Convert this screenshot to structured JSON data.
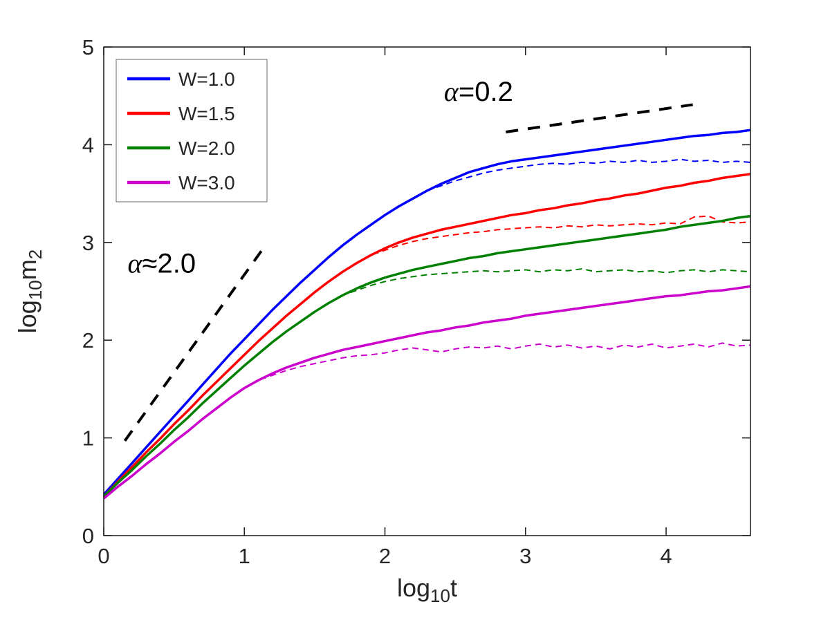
{
  "figure": {
    "background": "#ffffff",
    "axis_color": "#262626",
    "text_color": "#262626",
    "legend_border_color": "#808080"
  },
  "chart_data": {
    "type": "line",
    "title": "",
    "xlabel": "log_{10}t",
    "ylabel": "log_{10}m_{2}",
    "xlim": [
      0,
      4.6
    ],
    "ylim": [
      0,
      5
    ],
    "xticks": [
      0,
      1,
      2,
      3,
      4
    ],
    "yticks": [
      0,
      1,
      2,
      3,
      4,
      5
    ],
    "grid": false,
    "legend_position": "top-left",
    "x": [
      0.0,
      0.1,
      0.2,
      0.3,
      0.4,
      0.5,
      0.6,
      0.7,
      0.8,
      0.9,
      1.0,
      1.1,
      1.2,
      1.3,
      1.4,
      1.5,
      1.6,
      1.7,
      1.8,
      1.9,
      2.0,
      2.1,
      2.2,
      2.3,
      2.4,
      2.5,
      2.6,
      2.7,
      2.8,
      2.9,
      3.0,
      3.1,
      3.2,
      3.3,
      3.4,
      3.5,
      3.6,
      3.7,
      3.8,
      3.9,
      4.0,
      4.1,
      4.2,
      4.3,
      4.4,
      4.5,
      4.6
    ],
    "series": [
      {
        "name": "W=1.0 dashed",
        "color": "#0000FF",
        "style": "dashed",
        "width": 2,
        "in_legend": false,
        "values": [
          0.42,
          0.58,
          0.74,
          0.9,
          1.06,
          1.22,
          1.38,
          1.54,
          1.7,
          1.86,
          2.01,
          2.16,
          2.31,
          2.45,
          2.59,
          2.72,
          2.85,
          2.97,
          3.08,
          3.18,
          3.28,
          3.37,
          3.45,
          3.53,
          3.58,
          3.63,
          3.67,
          3.71,
          3.74,
          3.76,
          3.78,
          3.8,
          3.81,
          3.8,
          3.82,
          3.81,
          3.83,
          3.82,
          3.84,
          3.82,
          3.83,
          3.85,
          3.83,
          3.84,
          3.82,
          3.83,
          3.82
        ]
      },
      {
        "name": "W=1.5 dashed",
        "color": "#FF0000",
        "style": "dashed",
        "width": 2,
        "in_legend": false,
        "values": [
          0.4,
          0.55,
          0.7,
          0.85,
          0.99,
          1.14,
          1.28,
          1.43,
          1.57,
          1.71,
          1.85,
          1.99,
          2.12,
          2.25,
          2.37,
          2.49,
          2.6,
          2.7,
          2.79,
          2.87,
          2.92,
          2.97,
          3.01,
          3.04,
          3.06,
          3.08,
          3.1,
          3.11,
          3.13,
          3.14,
          3.15,
          3.16,
          3.15,
          3.17,
          3.16,
          3.18,
          3.17,
          3.18,
          3.19,
          3.18,
          3.2,
          3.19,
          3.26,
          3.27,
          3.21,
          3.2,
          3.21
        ]
      },
      {
        "name": "W=2.0 dashed",
        "color": "#008000",
        "style": "dashed",
        "width": 2,
        "in_legend": false,
        "values": [
          0.4,
          0.54,
          0.67,
          0.81,
          0.94,
          1.08,
          1.21,
          1.35,
          1.48,
          1.61,
          1.74,
          1.86,
          1.98,
          2.09,
          2.19,
          2.29,
          2.38,
          2.46,
          2.51,
          2.56,
          2.6,
          2.63,
          2.65,
          2.67,
          2.68,
          2.69,
          2.7,
          2.71,
          2.7,
          2.71,
          2.72,
          2.7,
          2.72,
          2.71,
          2.73,
          2.7,
          2.71,
          2.72,
          2.7,
          2.71,
          2.69,
          2.71,
          2.72,
          2.7,
          2.72,
          2.71,
          2.7
        ]
      },
      {
        "name": "W=3.0 dashed",
        "color": "#CC00CC",
        "style": "dashed",
        "width": 2,
        "in_legend": false,
        "values": [
          0.38,
          0.5,
          0.61,
          0.73,
          0.84,
          0.96,
          1.07,
          1.19,
          1.3,
          1.41,
          1.51,
          1.59,
          1.64,
          1.69,
          1.73,
          1.76,
          1.79,
          1.82,
          1.84,
          1.85,
          1.87,
          1.9,
          1.92,
          1.9,
          1.88,
          1.91,
          1.93,
          1.92,
          1.94,
          1.91,
          1.94,
          1.96,
          1.93,
          1.95,
          1.92,
          1.94,
          1.91,
          1.95,
          1.93,
          1.96,
          1.92,
          1.94,
          1.96,
          1.93,
          1.97,
          1.94,
          1.95
        ]
      },
      {
        "name": "W=1.0",
        "color": "#0000FF",
        "style": "solid",
        "width": 3.5,
        "in_legend": true,
        "values": [
          0.42,
          0.58,
          0.74,
          0.9,
          1.06,
          1.22,
          1.38,
          1.54,
          1.7,
          1.86,
          2.01,
          2.16,
          2.31,
          2.45,
          2.59,
          2.72,
          2.85,
          2.97,
          3.08,
          3.18,
          3.28,
          3.37,
          3.45,
          3.53,
          3.6,
          3.66,
          3.72,
          3.76,
          3.8,
          3.83,
          3.85,
          3.87,
          3.89,
          3.91,
          3.93,
          3.95,
          3.97,
          3.99,
          4.01,
          4.03,
          4.05,
          4.07,
          4.09,
          4.1,
          4.12,
          4.13,
          4.15
        ]
      },
      {
        "name": "W=1.5",
        "color": "#FF0000",
        "style": "solid",
        "width": 3.5,
        "in_legend": true,
        "values": [
          0.4,
          0.55,
          0.7,
          0.85,
          0.99,
          1.14,
          1.28,
          1.43,
          1.57,
          1.71,
          1.85,
          1.99,
          2.12,
          2.25,
          2.37,
          2.49,
          2.6,
          2.7,
          2.79,
          2.87,
          2.94,
          3.0,
          3.05,
          3.09,
          3.13,
          3.16,
          3.19,
          3.22,
          3.25,
          3.28,
          3.3,
          3.33,
          3.35,
          3.38,
          3.4,
          3.43,
          3.45,
          3.48,
          3.5,
          3.53,
          3.56,
          3.58,
          3.61,
          3.63,
          3.66,
          3.68,
          3.7
        ]
      },
      {
        "name": "W=2.0",
        "color": "#008000",
        "style": "solid",
        "width": 3.5,
        "in_legend": true,
        "values": [
          0.4,
          0.54,
          0.67,
          0.81,
          0.94,
          1.08,
          1.21,
          1.35,
          1.48,
          1.61,
          1.74,
          1.86,
          1.98,
          2.09,
          2.19,
          2.29,
          2.38,
          2.46,
          2.53,
          2.59,
          2.64,
          2.68,
          2.72,
          2.75,
          2.78,
          2.81,
          2.84,
          2.86,
          2.89,
          2.91,
          2.93,
          2.95,
          2.97,
          2.99,
          3.01,
          3.03,
          3.05,
          3.07,
          3.09,
          3.11,
          3.13,
          3.16,
          3.18,
          3.2,
          3.22,
          3.25,
          3.27
        ]
      },
      {
        "name": "W=3.0",
        "color": "#CC00CC",
        "style": "solid",
        "width": 3.5,
        "in_legend": true,
        "values": [
          0.38,
          0.5,
          0.61,
          0.73,
          0.84,
          0.96,
          1.07,
          1.19,
          1.3,
          1.41,
          1.51,
          1.59,
          1.66,
          1.72,
          1.77,
          1.82,
          1.86,
          1.9,
          1.93,
          1.96,
          1.99,
          2.02,
          2.05,
          2.08,
          2.1,
          2.13,
          2.15,
          2.18,
          2.2,
          2.22,
          2.25,
          2.27,
          2.29,
          2.31,
          2.33,
          2.35,
          2.37,
          2.39,
          2.41,
          2.43,
          2.45,
          2.46,
          2.48,
          2.5,
          2.51,
          2.53,
          2.55
        ]
      }
    ],
    "reference_lines": [
      {
        "label": "alpha approx 2.0",
        "x1": 0.15,
        "y1": 0.97,
        "x2": 1.13,
        "y2": 2.93,
        "color": "#000000",
        "style": "dashed",
        "width": 4
      },
      {
        "label": "alpha = 0.2",
        "x1": 2.86,
        "y1": 4.13,
        "x2": 4.19,
        "y2": 4.41,
        "color": "#000000",
        "style": "dashed",
        "width": 4
      }
    ],
    "annotations": [
      {
        "text": "α≈2.0",
        "x": 0.17,
        "y": 2.69,
        "size": 40
      },
      {
        "text": "α=0.2",
        "x": 2.42,
        "y": 4.45,
        "size": 40
      }
    ],
    "legend": {
      "items": [
        {
          "label": "W=1.0",
          "color": "#0000FF"
        },
        {
          "label": "W=1.5",
          "color": "#FF0000"
        },
        {
          "label": "W=2.0",
          "color": "#008000"
        },
        {
          "label": "W=3.0",
          "color": "#CC00CC"
        }
      ]
    }
  }
}
